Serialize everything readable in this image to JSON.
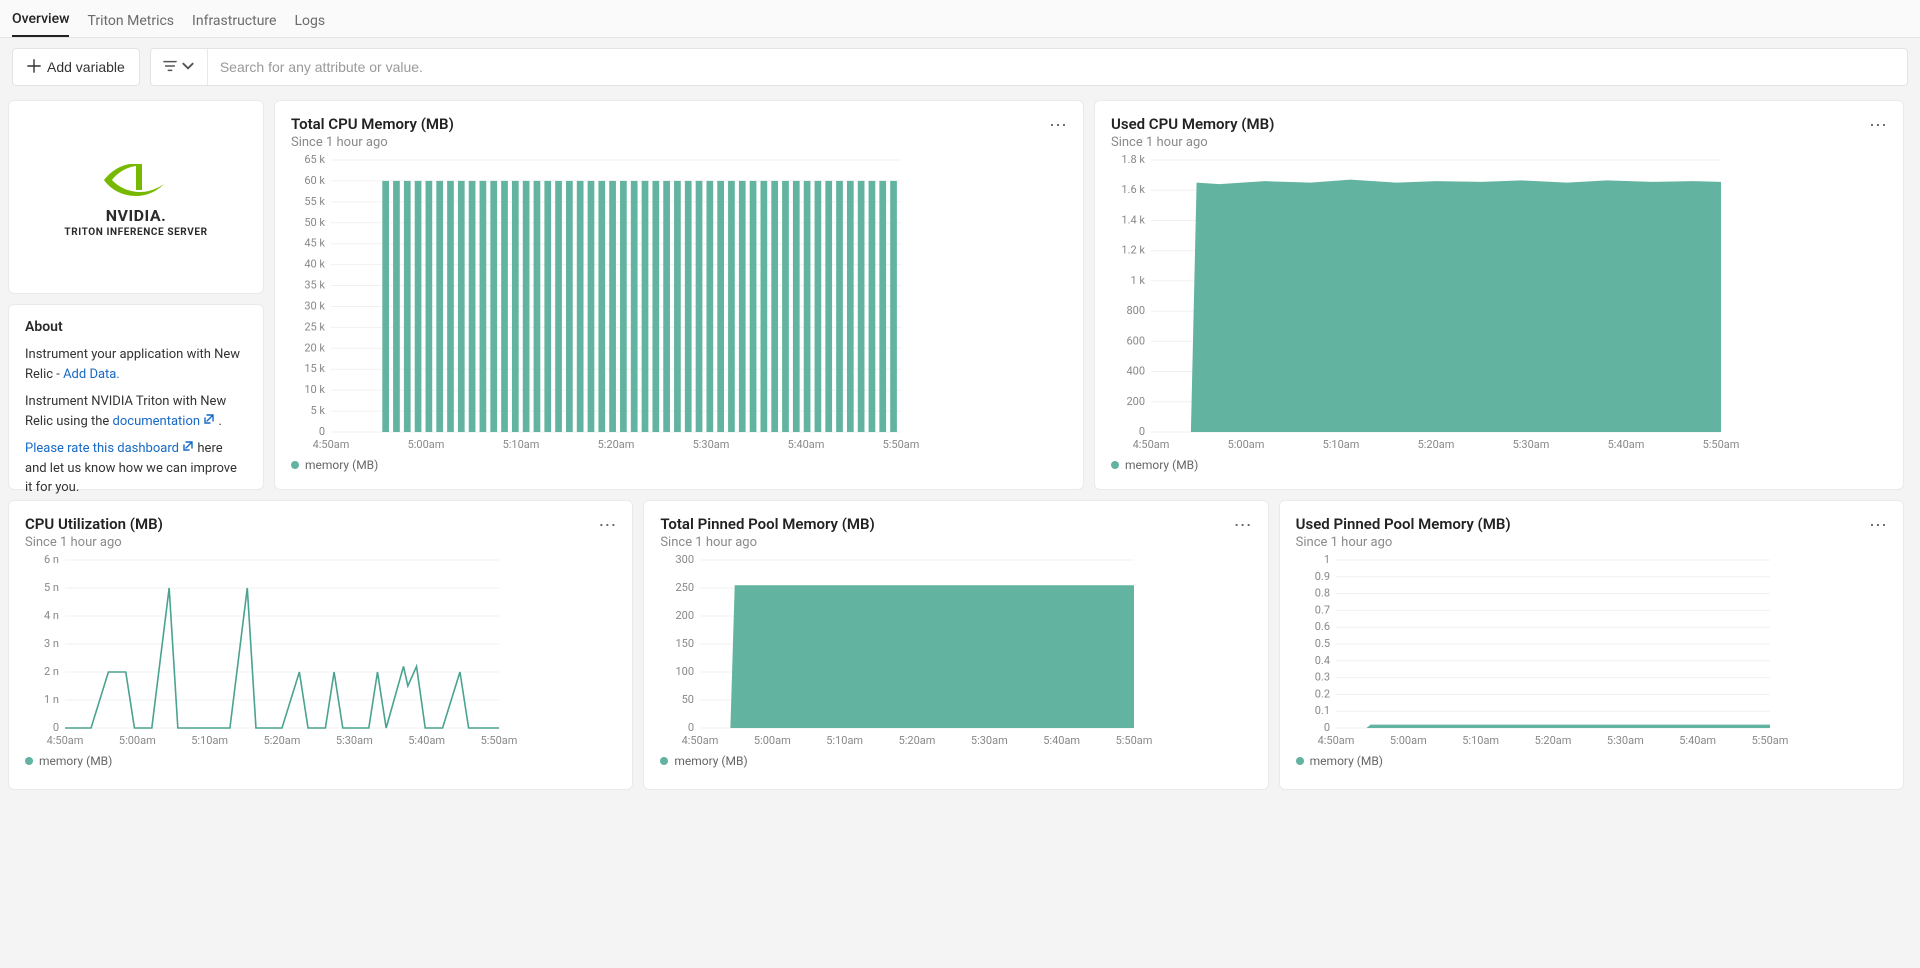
{
  "colors": {
    "series": "#62b39f",
    "series_line": "#4aa38f",
    "grid": "#f0f0f0",
    "axis_text": "#888888",
    "panel_bg": "#ffffff",
    "page_bg": "#f4f4f4",
    "link": "#1769c6",
    "nvidia_green": "#76b900"
  },
  "tabs": [
    {
      "label": "Overview",
      "active": true
    },
    {
      "label": "Triton Metrics",
      "active": false
    },
    {
      "label": "Infrastructure",
      "active": false
    },
    {
      "label": "Logs",
      "active": false
    }
  ],
  "add_variable_label": "Add variable",
  "search": {
    "placeholder": "Search for any attribute or value."
  },
  "logo": {
    "brand": "NVIDIA.",
    "product": "TRITON INFERENCE SERVER"
  },
  "about": {
    "title": "About",
    "line1_a": "Instrument your application with New Relic - ",
    "line1_link": "Add Data.",
    "line2_a": "Instrument NVIDIA Triton with New Relic using the ",
    "line2_link": "documentation",
    "line2_b": " .",
    "line3_link": "Please rate this dashboard",
    "line3_b": "   here and let us know how we can improve it for you."
  },
  "x_ticks": [
    "4:50am",
    "5:00am",
    "5:10am",
    "5:20am",
    "5:30am",
    "5:40am",
    "5:50am"
  ],
  "charts": {
    "total_cpu_mem": {
      "title": "Total CPU Memory (MB)",
      "subtitle": "Since 1 hour ago",
      "type": "bar",
      "legend": "memory (MB)",
      "ylim": [
        0,
        65000
      ],
      "ytick_step": 5000,
      "yticks": [
        "65 k",
        "60 k",
        "55 k",
        "50 k",
        "45 k",
        "40 k",
        "35 k",
        "30 k",
        "25 k",
        "20 k",
        "15 k",
        "10 k",
        "5 k",
        "0"
      ],
      "bar_count": 48,
      "bar_value": 60000,
      "bar_color": "#62b39f",
      "bar_width_ratio": 0.62
    },
    "used_cpu_mem": {
      "title": "Used CPU Memory (MB)",
      "subtitle": "Since 1 hour ago",
      "type": "area",
      "legend": "memory (MB)",
      "ylim": [
        0,
        1800
      ],
      "yticks": [
        "1.8 k",
        "1.6 k",
        "1.4 k",
        "1.2 k",
        "1 k",
        "800",
        "600",
        "400",
        "200",
        "0"
      ],
      "series": [
        [
          0.0,
          0
        ],
        [
          0.07,
          0
        ],
        [
          0.08,
          1650
        ],
        [
          0.12,
          1640
        ],
        [
          0.2,
          1660
        ],
        [
          0.28,
          1650
        ],
        [
          0.35,
          1670
        ],
        [
          0.43,
          1650
        ],
        [
          0.5,
          1660
        ],
        [
          0.58,
          1655
        ],
        [
          0.65,
          1665
        ],
        [
          0.73,
          1650
        ],
        [
          0.8,
          1665
        ],
        [
          0.88,
          1655
        ],
        [
          0.95,
          1660
        ],
        [
          1.0,
          1655
        ]
      ],
      "fill_color": "#62b39f"
    },
    "cpu_util": {
      "title": "CPU Utilization (MB)",
      "subtitle": "Since 1 hour ago",
      "type": "line",
      "legend": "memory (MB)",
      "ylim": [
        0,
        6
      ],
      "yticks": [
        "6 n",
        "5 n",
        "4 n",
        "3 n",
        "2 n",
        "1 n",
        "0"
      ],
      "series": [
        [
          0.0,
          0
        ],
        [
          0.04,
          0
        ],
        [
          0.06,
          0
        ],
        [
          0.1,
          2
        ],
        [
          0.14,
          2
        ],
        [
          0.16,
          0
        ],
        [
          0.2,
          0
        ],
        [
          0.24,
          5
        ],
        [
          0.26,
          0
        ],
        [
          0.3,
          0
        ],
        [
          0.34,
          0
        ],
        [
          0.38,
          0
        ],
        [
          0.42,
          5
        ],
        [
          0.44,
          0
        ],
        [
          0.5,
          0
        ],
        [
          0.54,
          2
        ],
        [
          0.56,
          0
        ],
        [
          0.6,
          0
        ],
        [
          0.62,
          2
        ],
        [
          0.64,
          0
        ],
        [
          0.7,
          0
        ],
        [
          0.72,
          2
        ],
        [
          0.74,
          0
        ],
        [
          0.78,
          2.2
        ],
        [
          0.79,
          1.5
        ],
        [
          0.81,
          2.2
        ],
        [
          0.83,
          0
        ],
        [
          0.87,
          0
        ],
        [
          0.91,
          2
        ],
        [
          0.93,
          0
        ],
        [
          1.0,
          0
        ]
      ],
      "line_color": "#4aa38f"
    },
    "total_pinned": {
      "title": "Total Pinned Pool Memory (MB)",
      "subtitle": "Since 1 hour ago",
      "type": "area",
      "legend": "memory (MB)",
      "ylim": [
        0,
        300
      ],
      "yticks": [
        "300",
        "250",
        "200",
        "150",
        "100",
        "50",
        "0"
      ],
      "series": [
        [
          0.0,
          0
        ],
        [
          0.07,
          0
        ],
        [
          0.08,
          255
        ],
        [
          0.2,
          255
        ],
        [
          0.4,
          255
        ],
        [
          0.6,
          255
        ],
        [
          0.8,
          255
        ],
        [
          1.0,
          255
        ]
      ],
      "fill_color": "#62b39f"
    },
    "used_pinned": {
      "title": "Used Pinned Pool Memory (MB)",
      "subtitle": "Since 1 hour ago",
      "type": "area",
      "legend": "memory (MB)",
      "ylim": [
        0,
        1
      ],
      "yticks": [
        "1",
        "0.9",
        "0.8",
        "0.7",
        "0.6",
        "0.5",
        "0.4",
        "0.3",
        "0.2",
        "0.1",
        "0"
      ],
      "series": [
        [
          0.0,
          0
        ],
        [
          0.07,
          0
        ],
        [
          0.08,
          0.02
        ],
        [
          0.2,
          0.02
        ],
        [
          0.4,
          0.02
        ],
        [
          0.6,
          0.02
        ],
        [
          0.8,
          0.02
        ],
        [
          1.0,
          0.02
        ]
      ],
      "fill_color": "#62b39f"
    }
  }
}
